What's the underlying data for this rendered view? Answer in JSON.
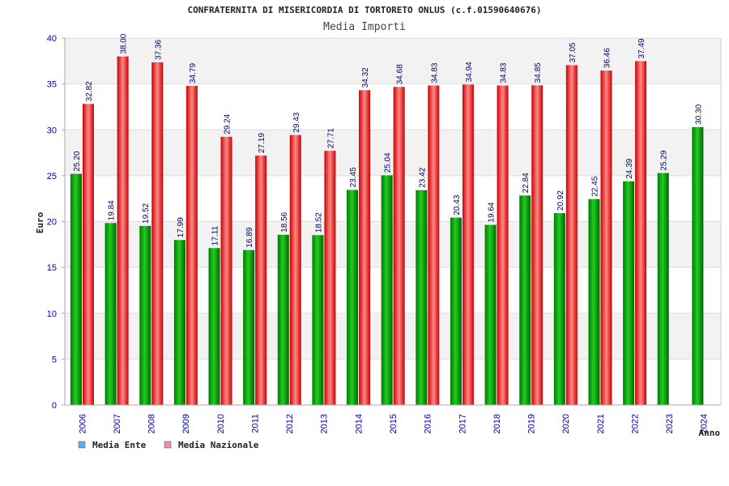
{
  "chart_data": {
    "type": "bar",
    "title": "CONFRATERNITA DI MISERICORDIA DI TORTORETO ONLUS (c.f.01590640676)",
    "subtitle": "Media Importi",
    "xlabel": "Anno",
    "ylabel": "Euro",
    "ylim": [
      0,
      40
    ],
    "yticks": [
      "0",
      "5",
      "10",
      "15",
      "20",
      "25",
      "30",
      "35",
      "40"
    ],
    "categories": [
      "2006",
      "2007",
      "2008",
      "2009",
      "2010",
      "2011",
      "2012",
      "2013",
      "2014",
      "2015",
      "2016",
      "2017",
      "2018",
      "2019",
      "2020",
      "2021",
      "2022",
      "2023",
      "2024"
    ],
    "series": [
      {
        "name": "Media Ente",
        "color": "#00aa00",
        "values": [
          25.2,
          19.84,
          19.52,
          17.99,
          17.11,
          16.89,
          18.56,
          18.52,
          23.45,
          25.04,
          23.42,
          20.43,
          19.64,
          22.84,
          20.92,
          22.45,
          24.39,
          25.29,
          30.3
        ],
        "labels": [
          "25.20",
          "19.84",
          "19.52",
          "17.99",
          "17.11",
          "16.89",
          "18.56",
          "18.52",
          "23.45",
          "25.04",
          "23.42",
          "20.43",
          "19.64",
          "22.84",
          "20.92",
          "22.45",
          "24.39",
          "25.29",
          "30.30"
        ]
      },
      {
        "name": "Media Nazionale",
        "color": "#ee1111",
        "values": [
          32.82,
          38.0,
          37.36,
          34.79,
          29.24,
          27.19,
          29.43,
          27.71,
          34.32,
          34.68,
          34.83,
          34.94,
          34.83,
          34.85,
          37.05,
          36.46,
          37.49,
          null,
          null
        ],
        "labels": [
          "32.82",
          "38.00",
          "37.36",
          "34.79",
          "29.24",
          "27.19",
          "29.43",
          "27.71",
          "34.32",
          "34.68",
          "34.83",
          "34.94",
          "34.83",
          "34.85",
          "37.05",
          "36.46",
          "37.49",
          "",
          ""
        ]
      }
    ],
    "legend": [
      {
        "label": "Media Ente",
        "color": "#66aaee"
      },
      {
        "label": "Media Nazionale",
        "color": "#ee88bb"
      }
    ],
    "grid": true,
    "legend_position": "bottom-left"
  }
}
